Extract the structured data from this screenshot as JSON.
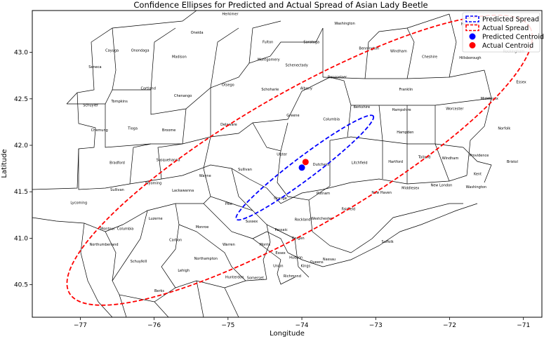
{
  "chart_data": {
    "type": "scatter",
    "title": "Confidence Ellipses for Predicted and Actual Spread of Asian Lady Beetle",
    "xlabel": "Longitude",
    "ylabel": "Latitude",
    "xlim": [
      -77.65,
      -70.75
    ],
    "ylim": [
      40.15,
      43.45
    ],
    "xticks": [
      -77,
      -76,
      -75,
      -74,
      -73,
      -72,
      -71
    ],
    "yticks": [
      40.5,
      41.0,
      41.5,
      42.0,
      42.5,
      43.0
    ],
    "xtick_labels": [
      "−77",
      "−76",
      "−75",
      "−74",
      "−73",
      "−72",
      "−71"
    ],
    "ytick_labels": [
      "40.5",
      "41.0",
      "41.5",
      "42.0",
      "42.5",
      "43.0"
    ],
    "grid": false,
    "legend_position": "top-right",
    "legend": [
      {
        "label": "Predicted Spread",
        "kind": "ellipse",
        "color": "#0000ff"
      },
      {
        "label": "Actual Spread",
        "kind": "ellipse",
        "color": "#ff0000"
      },
      {
        "label": "Predicted Centroid",
        "kind": "point",
        "color": "#0000ff"
      },
      {
        "label": "Actual Centroid",
        "kind": "point",
        "color": "#ff0000"
      }
    ],
    "ellipses": [
      {
        "name": "Predicted Spread",
        "color": "#0000ff",
        "center": [
          -73.96,
          41.76
        ],
        "rx_deg": 1.16,
        "ry_deg": 0.12,
        "angle_deg": 37
      },
      {
        "name": "Actual Spread",
        "color": "#ff0000",
        "center": [
          -74.03,
          41.84
        ],
        "rx_deg": 3.6,
        "ry_deg": 0.72,
        "angle_deg": 30
      }
    ],
    "points": [
      {
        "name": "Predicted Centroid",
        "color": "#0000ff",
        "x": -74.0,
        "y": 41.76
      },
      {
        "name": "Actual Centroid",
        "color": "#ff0000",
        "x": -73.95,
        "y": 41.82
      }
    ],
    "map_labels": [
      {
        "text": "Herkimer",
        "x": -74.97,
        "y": 43.4
      },
      {
        "text": "Oneida",
        "x": -75.42,
        "y": 43.2
      },
      {
        "text": "Washington",
        "x": -73.42,
        "y": 43.3
      },
      {
        "text": "Merrimack",
        "x": -71.72,
        "y": 43.29
      },
      {
        "text": "Fulton",
        "x": -74.46,
        "y": 43.1
      },
      {
        "text": "Saratoga",
        "x": -73.87,
        "y": 43.1
      },
      {
        "text": "Cayuga",
        "x": -76.57,
        "y": 43.01
      },
      {
        "text": "Onondaga",
        "x": -76.19,
        "y": 43.01
      },
      {
        "text": "Bennington",
        "x": -73.09,
        "y": 43.03
      },
      {
        "text": "Windham",
        "x": -72.69,
        "y": 43.0
      },
      {
        "text": "Rockingham",
        "x": -71.13,
        "y": 43.0
      },
      {
        "text": "Madison",
        "x": -75.66,
        "y": 42.94
      },
      {
        "text": "Montgomery",
        "x": -74.45,
        "y": 42.91
      },
      {
        "text": "Cheshire",
        "x": -72.27,
        "y": 42.94
      },
      {
        "text": "Hillsborough",
        "x": -71.72,
        "y": 42.93
      },
      {
        "text": "Seneca",
        "x": -76.8,
        "y": 42.83
      },
      {
        "text": "Schenectady",
        "x": -74.07,
        "y": 42.85
      },
      {
        "text": "Rensselaer",
        "x": -73.52,
        "y": 42.72
      },
      {
        "text": "Essex",
        "x": -71.03,
        "y": 42.67
      },
      {
        "text": "Otsego",
        "x": -75.0,
        "y": 42.64
      },
      {
        "text": "Cortland",
        "x": -76.08,
        "y": 42.6
      },
      {
        "text": "Schoharie",
        "x": -74.43,
        "y": 42.59
      },
      {
        "text": "Albany",
        "x": -73.94,
        "y": 42.6
      },
      {
        "text": "Franklin",
        "x": -72.59,
        "y": 42.59
      },
      {
        "text": "Chenango",
        "x": -75.61,
        "y": 42.52
      },
      {
        "text": "Middlesex",
        "x": -71.46,
        "y": 42.49
      },
      {
        "text": "Tompkins",
        "x": -76.47,
        "y": 42.46
      },
      {
        "text": "Schuyler",
        "x": -76.86,
        "y": 42.42
      },
      {
        "text": "Berkshire",
        "x": -73.19,
        "y": 42.4
      },
      {
        "text": "Hampshire",
        "x": -72.65,
        "y": 42.37
      },
      {
        "text": "Worcester",
        "x": -71.93,
        "y": 42.38
      },
      {
        "text": "Greene",
        "x": -74.12,
        "y": 42.31
      },
      {
        "text": "Columbia",
        "x": -73.6,
        "y": 42.27
      },
      {
        "text": "Delaware",
        "x": -74.99,
        "y": 42.21
      },
      {
        "text": "Chemung",
        "x": -76.74,
        "y": 42.15
      },
      {
        "text": "Tioga",
        "x": -76.29,
        "y": 42.17
      },
      {
        "text": "Broome",
        "x": -75.8,
        "y": 42.15
      },
      {
        "text": "Norfolk",
        "x": -71.26,
        "y": 42.17
      },
      {
        "text": "Hampden",
        "x": -72.6,
        "y": 42.13
      },
      {
        "text": "Ulster",
        "x": -74.27,
        "y": 41.89
      },
      {
        "text": "Providence",
        "x": -71.6,
        "y": 41.88
      },
      {
        "text": "Susquehanna",
        "x": -75.81,
        "y": 41.83
      },
      {
        "text": "Tolland",
        "x": -72.34,
        "y": 41.86
      },
      {
        "text": "Windham",
        "x": -71.99,
        "y": 41.85
      },
      {
        "text": "Bradford",
        "x": -76.5,
        "y": 41.8
      },
      {
        "text": "Litchfield",
        "x": -73.22,
        "y": 41.8
      },
      {
        "text": "Hartford",
        "x": -72.73,
        "y": 41.81
      },
      {
        "text": "Dutchess",
        "x": -73.74,
        "y": 41.78
      },
      {
        "text": "Bristol",
        "x": -71.15,
        "y": 41.81
      },
      {
        "text": "Sullivan",
        "x": -74.77,
        "y": 41.73
      },
      {
        "text": "Kent",
        "x": -71.62,
        "y": 41.68
      },
      {
        "text": "Wayne",
        "x": -75.31,
        "y": 41.66
      },
      {
        "text": "New London",
        "x": -72.11,
        "y": 41.56
      },
      {
        "text": "Washington",
        "x": -71.64,
        "y": 41.54
      },
      {
        "text": "Wyoming",
        "x": -76.01,
        "y": 41.58
      },
      {
        "text": "Middlesex",
        "x": -72.53,
        "y": 41.53
      },
      {
        "text": "Putnam",
        "x": -73.71,
        "y": 41.47
      },
      {
        "text": "Sullivan",
        "x": -76.5,
        "y": 41.51
      },
      {
        "text": "Lackawanna",
        "x": -75.61,
        "y": 41.5
      },
      {
        "text": "New Haven",
        "x": -72.92,
        "y": 41.48
      },
      {
        "text": "Orange",
        "x": -74.29,
        "y": 41.42
      },
      {
        "text": "Lycoming",
        "x": -77.02,
        "y": 41.37
      },
      {
        "text": "Pike",
        "x": -74.99,
        "y": 41.36
      },
      {
        "text": "Fairfield",
        "x": -73.37,
        "y": 41.3
      },
      {
        "text": "Luzerne",
        "x": -75.98,
        "y": 41.2
      },
      {
        "text": "Westchester",
        "x": -73.73,
        "y": 41.2
      },
      {
        "text": "Rockland",
        "x": -73.99,
        "y": 41.19
      },
      {
        "text": "Sussex",
        "x": -74.68,
        "y": 41.17
      },
      {
        "text": "Monroe",
        "x": -75.35,
        "y": 41.11
      },
      {
        "text": "Montour",
        "x": -76.63,
        "y": 41.09
      },
      {
        "text": "Columbia",
        "x": -76.39,
        "y": 41.09
      },
      {
        "text": "Passaic",
        "x": -74.28,
        "y": 41.08
      },
      {
        "text": "Carbon",
        "x": -75.71,
        "y": 40.97
      },
      {
        "text": "Bergen",
        "x": -74.05,
        "y": 40.99
      },
      {
        "text": "Suffolk",
        "x": -72.84,
        "y": 40.95
      },
      {
        "text": "Northumberland",
        "x": -76.68,
        "y": 40.92
      },
      {
        "text": "Warren",
        "x": -74.99,
        "y": 40.92
      },
      {
        "text": "Morris",
        "x": -74.5,
        "y": 40.92
      },
      {
        "text": "Essex",
        "x": -74.29,
        "y": 40.83
      },
      {
        "text": "Hudson",
        "x": -74.08,
        "y": 40.78
      },
      {
        "text": "Nassau",
        "x": -73.63,
        "y": 40.76
      },
      {
        "text": "Northampton",
        "x": -75.3,
        "y": 40.77
      },
      {
        "text": "Schuylkill",
        "x": -76.21,
        "y": 40.74
      },
      {
        "text": "Queens",
        "x": -73.8,
        "y": 40.73
      },
      {
        "text": "Union",
        "x": -74.32,
        "y": 40.69
      },
      {
        "text": "Kings",
        "x": -73.95,
        "y": 40.69
      },
      {
        "text": "Lehigh",
        "x": -75.6,
        "y": 40.64
      },
      {
        "text": "Hunterdon",
        "x": -74.91,
        "y": 40.57
      },
      {
        "text": "Somerset",
        "x": -74.63,
        "y": 40.56
      },
      {
        "text": "Richmond",
        "x": -74.13,
        "y": 40.58
      },
      {
        "text": "Berks",
        "x": -75.93,
        "y": 40.42
      }
    ]
  }
}
